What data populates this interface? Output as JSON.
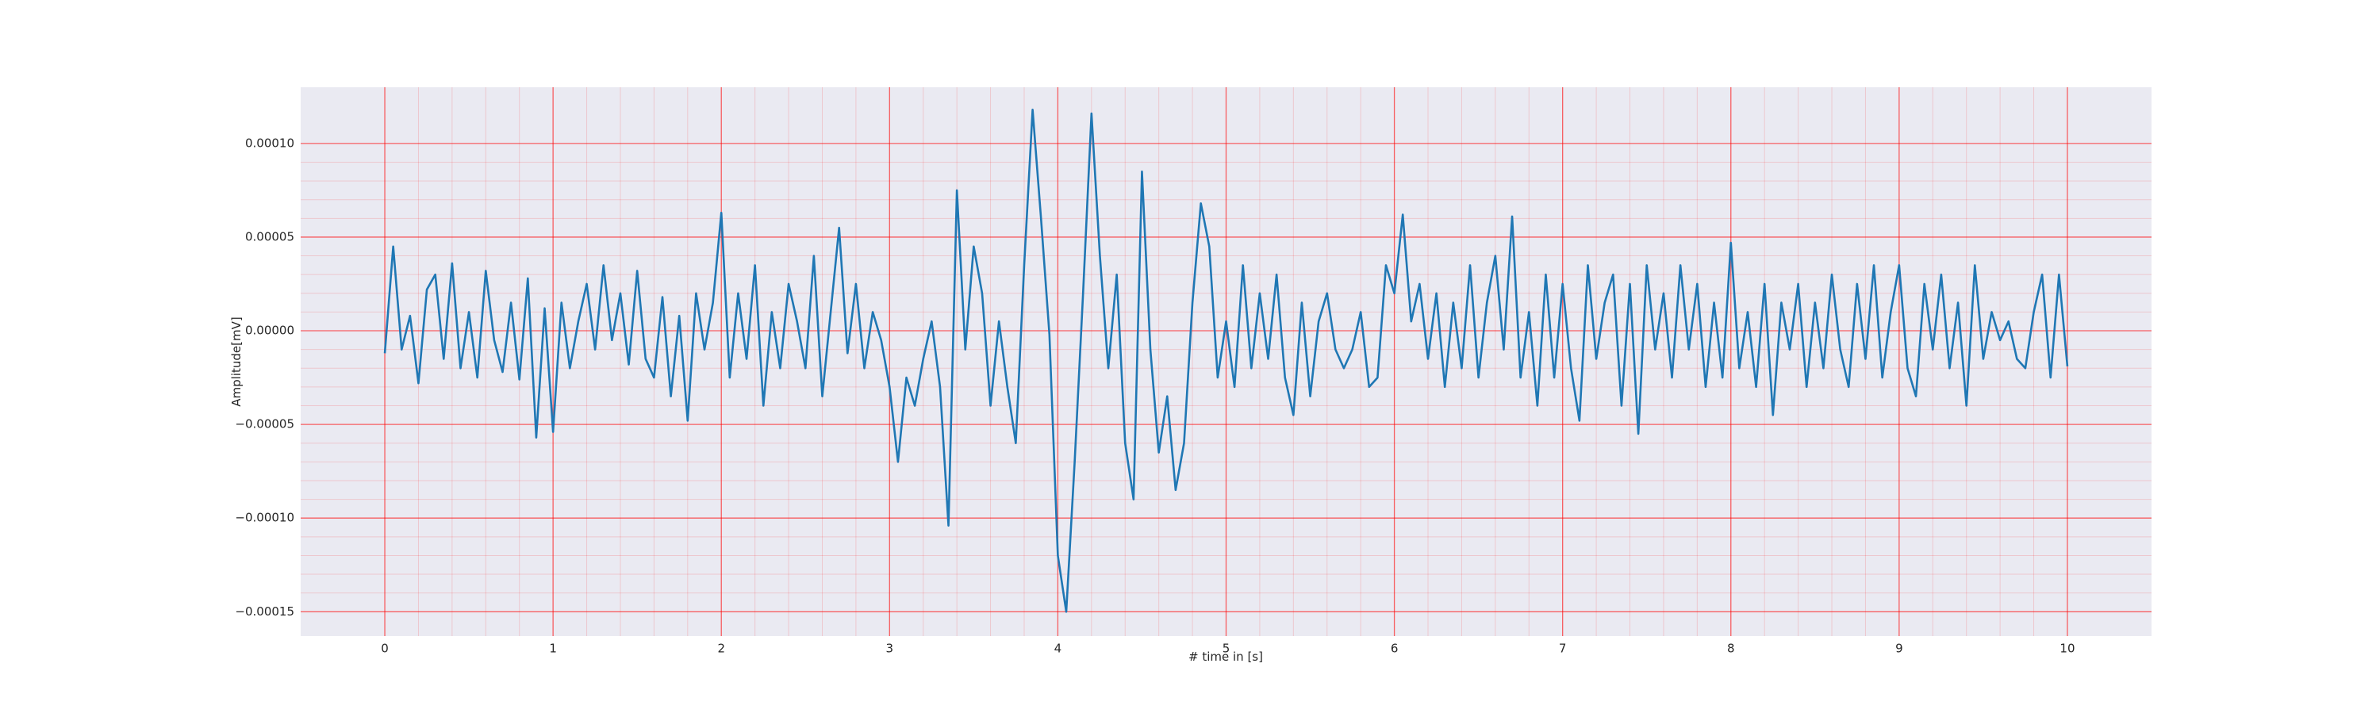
{
  "chart_data": {
    "type": "line",
    "x_label": "# time in [s]",
    "y_label": "Amplitude[mV]",
    "color": "#1f77b4",
    "grid": true,
    "grid_color": "#ff0000",
    "background": "#eaeaf2",
    "xlim": [
      -0.5,
      10.5
    ],
    "xticks": [
      0,
      1,
      2,
      3,
      4,
      5,
      6,
      7,
      8,
      9,
      10
    ],
    "ylim": [
      -0.000163,
      0.00013
    ],
    "yticks": [
      {
        "value": 0.0001,
        "label": "0.00010"
      },
      {
        "value": 5e-05,
        "label": "0.00005"
      },
      {
        "value": 0,
        "label": "0.00000"
      },
      {
        "value": -5e-05,
        "label": "−0.00005"
      },
      {
        "value": -0.0001,
        "label": "−0.00010"
      },
      {
        "value": -0.00015,
        "label": "−0.00015"
      }
    ],
    "x": [
      0,
      0.05,
      0.1,
      0.15,
      0.2,
      0.25,
      0.3,
      0.35,
      0.4,
      0.45,
      0.5,
      0.55,
      0.6,
      0.65,
      0.7,
      0.75,
      0.8,
      0.85,
      0.9,
      0.95,
      1,
      1.05,
      1.1,
      1.15,
      1.2,
      1.25,
      1.3,
      1.35,
      1.4,
      1.45,
      1.5,
      1.55,
      1.6,
      1.65,
      1.7,
      1.75,
      1.8,
      1.85,
      1.9,
      1.95,
      2,
      2.05,
      2.1,
      2.15,
      2.2,
      2.25,
      2.3,
      2.35,
      2.4,
      2.45,
      2.5,
      2.55,
      2.6,
      2.65,
      2.7,
      2.75,
      2.8,
      2.85,
      2.9,
      2.95,
      3,
      3.05,
      3.1,
      3.15,
      3.2,
      3.25,
      3.3,
      3.35,
      3.4,
      3.45,
      3.5,
      3.55,
      3.6,
      3.65,
      3.7,
      3.75,
      3.8,
      3.85,
      3.9,
      3.95,
      4,
      4.05,
      4.1,
      4.15,
      4.2,
      4.25,
      4.3,
      4.35,
      4.4,
      4.45,
      4.5,
      4.55,
      4.6,
      4.65,
      4.7,
      4.75,
      4.8,
      4.85,
      4.9,
      4.95,
      5,
      5.05,
      5.1,
      5.15,
      5.2,
      5.25,
      5.3,
      5.35,
      5.4,
      5.45,
      5.5,
      5.55,
      5.6,
      5.65,
      5.7,
      5.75,
      5.8,
      5.85,
      5.9,
      5.95,
      6,
      6.05,
      6.1,
      6.15,
      6.2,
      6.25,
      6.3,
      6.35,
      6.4,
      6.45,
      6.5,
      6.55,
      6.6,
      6.65,
      6.7,
      6.75,
      6.8,
      6.85,
      6.9,
      6.95,
      7,
      7.05,
      7.1,
      7.15,
      7.2,
      7.25,
      7.3,
      7.35,
      7.4,
      7.45,
      7.5,
      7.55,
      7.6,
      7.65,
      7.7,
      7.75,
      7.8,
      7.85,
      7.9,
      7.95,
      8,
      8.05,
      8.1,
      8.15,
      8.2,
      8.25,
      8.3,
      8.35,
      8.4,
      8.45,
      8.5,
      8.55,
      8.6,
      8.65,
      8.7,
      8.75,
      8.8,
      8.85,
      8.9,
      8.95,
      9,
      9.05,
      9.1,
      9.15,
      9.2,
      9.25,
      9.3,
      9.35,
      9.4,
      9.45,
      9.5,
      9.55,
      9.6,
      9.65,
      9.7,
      9.75,
      9.8,
      9.85,
      9.9,
      9.95,
      10
    ],
    "values": [
      -1.2e-05,
      4.5e-05,
      -1e-05,
      8e-06,
      -2.8e-05,
      2.2e-05,
      3e-05,
      -1.5e-05,
      3.6e-05,
      -2e-05,
      1e-05,
      -2.5e-05,
      3.2e-05,
      -5e-06,
      -2.2e-05,
      1.5e-05,
      -2.6e-05,
      2.8e-05,
      -5.7e-05,
      1.2e-05,
      -5.4e-05,
      1.5e-05,
      -2e-05,
      5e-06,
      2.5e-05,
      -1e-05,
      3.5e-05,
      -5e-06,
      2e-05,
      -1.8e-05,
      3.2e-05,
      -1.5e-05,
      -2.5e-05,
      1.8e-05,
      -3.5e-05,
      8e-06,
      -4.8e-05,
      2e-05,
      -1e-05,
      1.5e-05,
      6.3e-05,
      -2.5e-05,
      2e-05,
      -1.5e-05,
      3.5e-05,
      -4e-05,
      1e-05,
      -2e-05,
      2.5e-05,
      5e-06,
      -2e-05,
      4e-05,
      -3.5e-05,
      1e-05,
      5.5e-05,
      -1.2e-05,
      2.5e-05,
      -2e-05,
      1e-05,
      -5e-06,
      -3e-05,
      -7e-05,
      -2.5e-05,
      -4e-05,
      -1.5e-05,
      5e-06,
      -3e-05,
      -0.000104,
      7.5e-05,
      -1e-05,
      4.5e-05,
      2e-05,
      -4e-05,
      5e-06,
      -3e-05,
      -6e-05,
      3.5e-05,
      0.000118,
      6e-05,
      -2e-06,
      -0.00012,
      -0.00015,
      -7e-05,
      2e-05,
      0.000116,
      4e-05,
      -2e-05,
      3e-05,
      -6e-05,
      -9e-05,
      8.5e-05,
      -1e-05,
      -6.5e-05,
      -3.5e-05,
      -8.5e-05,
      -6e-05,
      1.5e-05,
      6.8e-05,
      4.5e-05,
      -2.5e-05,
      5e-06,
      -3e-05,
      3.5e-05,
      -2e-05,
      2e-05,
      -1.5e-05,
      3e-05,
      -2.5e-05,
      -4.5e-05,
      1.5e-05,
      -3.5e-05,
      5e-06,
      2e-05,
      -1e-05,
      -2e-05,
      -1e-05,
      1e-05,
      -3e-05,
      -2.5e-05,
      3.5e-05,
      2e-05,
      6.2e-05,
      5e-06,
      2.5e-05,
      -1.5e-05,
      2e-05,
      -3e-05,
      1.5e-05,
      -2e-05,
      3.5e-05,
      -2.5e-05,
      1.5e-05,
      4e-05,
      -1e-05,
      6.1e-05,
      -2.5e-05,
      1e-05,
      -4e-05,
      3e-05,
      -2.5e-05,
      2.5e-05,
      -2e-05,
      -4.8e-05,
      3.5e-05,
      -1.5e-05,
      1.5e-05,
      3e-05,
      -4e-05,
      2.5e-05,
      -5.5e-05,
      3.5e-05,
      -1e-05,
      2e-05,
      -2.5e-05,
      3.5e-05,
      -1e-05,
      2.5e-05,
      -3e-05,
      1.5e-05,
      -2.5e-05,
      4.7e-05,
      -2e-05,
      1e-05,
      -3e-05,
      2.5e-05,
      -4.5e-05,
      1.5e-05,
      -1e-05,
      2.5e-05,
      -3e-05,
      1.5e-05,
      -2e-05,
      3e-05,
      -1e-05,
      -3e-05,
      2.5e-05,
      -1.5e-05,
      3.5e-05,
      -2.5e-05,
      1e-05,
      3.5e-05,
      -2e-05,
      -3.5e-05,
      2.5e-05,
      -1e-05,
      3e-05,
      -2e-05,
      1.5e-05,
      -4e-05,
      3.5e-05,
      -1.5e-05,
      1e-05,
      -5e-06,
      5e-06,
      -1.5e-05,
      -2e-05,
      1e-05,
      3e-05,
      -2.5e-05,
      3e-05,
      -1.9e-05
    ]
  }
}
